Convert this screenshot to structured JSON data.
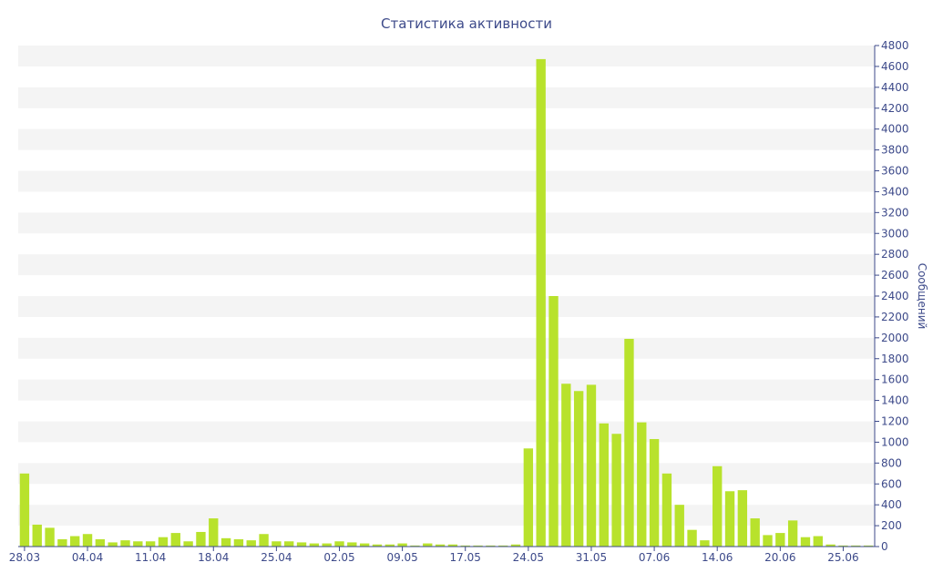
{
  "chart_data": {
    "type": "bar",
    "title": "Статистика активности",
    "ylabel": "Сообщений",
    "ylim": [
      0,
      4800
    ],
    "y_ticks": [
      0,
      200,
      400,
      600,
      800,
      1000,
      1200,
      1400,
      1600,
      1800,
      2000,
      2200,
      2400,
      2600,
      2800,
      3000,
      3200,
      3400,
      3600,
      3800,
      4000,
      4200,
      4400,
      4600,
      4800
    ],
    "y_axis_side": "right",
    "grid": "alternating horizontal bands",
    "x_tick_labels": [
      {
        "index": 0,
        "label": "28.03"
      },
      {
        "index": 5,
        "label": "04.04"
      },
      {
        "index": 10,
        "label": "11.04"
      },
      {
        "index": 15,
        "label": "18.04"
      },
      {
        "index": 20,
        "label": "25.04"
      },
      {
        "index": 25,
        "label": "02.05"
      },
      {
        "index": 30,
        "label": "09.05"
      },
      {
        "index": 35,
        "label": "17.05"
      },
      {
        "index": 40,
        "label": "24.05"
      },
      {
        "index": 45,
        "label": "31.05"
      },
      {
        "index": 50,
        "label": "07.06"
      },
      {
        "index": 55,
        "label": "14.06"
      },
      {
        "index": 60,
        "label": "20.06"
      },
      {
        "index": 65,
        "label": "25.06"
      }
    ],
    "values": [
      700,
      210,
      180,
      70,
      100,
      120,
      70,
      40,
      60,
      50,
      50,
      90,
      130,
      50,
      140,
      270,
      80,
      70,
      60,
      120,
      50,
      50,
      40,
      30,
      30,
      50,
      40,
      30,
      20,
      20,
      30,
      10,
      30,
      20,
      20,
      10,
      10,
      10,
      10,
      20,
      940,
      4670,
      2400,
      1560,
      1490,
      1550,
      1180,
      1080,
      1990,
      1190,
      1030,
      700,
      400,
      160,
      60,
      770,
      530,
      540,
      270,
      110,
      130,
      250,
      90,
      100,
      20,
      10,
      10,
      10
    ],
    "colors": {
      "bar": "#b8e22c",
      "band": "#f4f4f4",
      "text": "#3d4a8a",
      "axis": "#3d4a8a"
    }
  }
}
